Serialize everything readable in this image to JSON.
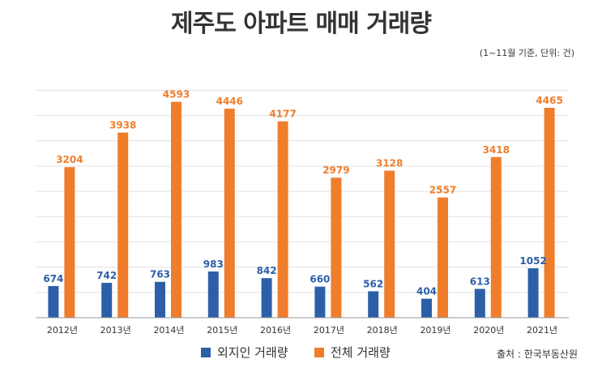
{
  "header": {
    "title": "제주도 아파트 매매 거래량",
    "note": "(1~11월 기준, 단위: 건)"
  },
  "footer": {
    "source": "출처 : 한국부동산원"
  },
  "colors": {
    "foreign": "#2d5fa8",
    "total": "#ef7d2c",
    "grid": "#e3e3e3",
    "axis": "#999999"
  },
  "chart_data": {
    "type": "bar",
    "categories": [
      "2012년",
      "2013년",
      "2014년",
      "2015년",
      "2016년",
      "2017년",
      "2018년",
      "2019년",
      "2020년",
      "2021년"
    ],
    "series": [
      {
        "name": "외지인 거래량",
        "values": [
          674,
          742,
          763,
          983,
          842,
          660,
          562,
          404,
          613,
          1052
        ]
      },
      {
        "name": "전체 거래량",
        "values": [
          3204,
          3938,
          4593,
          4446,
          4177,
          2979,
          3128,
          2557,
          3418,
          4465
        ]
      }
    ],
    "ylim": [
      0,
      5000
    ],
    "grid": true,
    "y_tick_labels_shown": false,
    "legend_position": "bottom"
  }
}
